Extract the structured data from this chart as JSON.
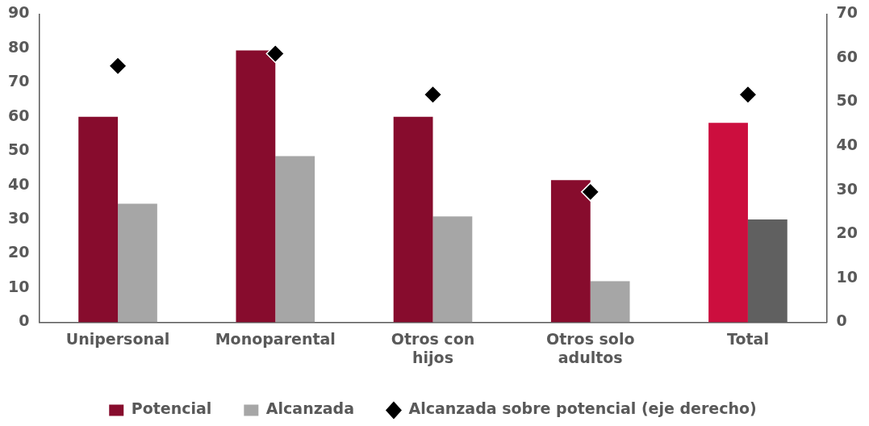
{
  "chart_data": {
    "type": "bar",
    "categories": [
      "Unipersonal",
      "Monoparental",
      "Otros con hijos",
      "Otros solo adultos",
      "Total"
    ],
    "series": [
      {
        "name": "Potencial",
        "color": "#870c2d",
        "colors": [
          "#870c2d",
          "#870c2d",
          "#870c2d",
          "#870c2d",
          "#cc0e3e"
        ],
        "values": [
          60,
          79.4,
          60,
          41.5,
          58.2
        ]
      },
      {
        "name": "Alcanzada",
        "color": "#a6a6a6",
        "colors": [
          "#a6a6a6",
          "#a6a6a6",
          "#a6a6a6",
          "#a6a6a6",
          "#606060"
        ],
        "values": [
          34.6,
          48.5,
          30.9,
          12,
          30
        ]
      },
      {
        "name": "Alcanzada sobre potencial (eje derecho)",
        "type": "scatter",
        "axis": "y2",
        "marker": "diamond",
        "color": "#000000",
        "values": [
          58.2,
          61,
          51.7,
          29.6,
          51.7
        ]
      }
    ],
    "ylim": [
      0,
      90
    ],
    "yticks": [
      0,
      10,
      20,
      30,
      40,
      50,
      60,
      70,
      80,
      90
    ],
    "y2lim": [
      0,
      70
    ],
    "y2ticks": [
      0,
      10,
      20,
      30,
      40,
      50,
      60,
      70
    ],
    "grid": false,
    "legend": "bottom"
  }
}
